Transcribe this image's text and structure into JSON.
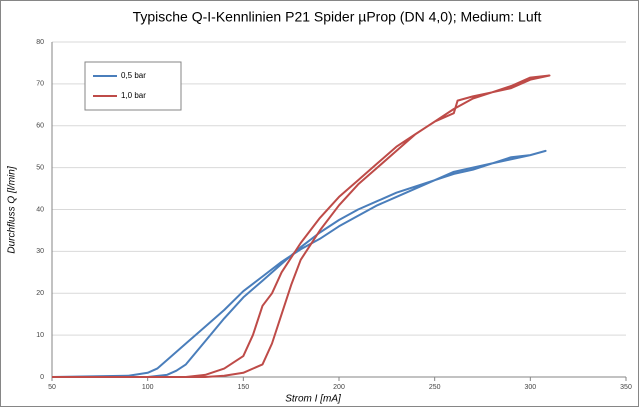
{
  "chart_data": {
    "type": "line",
    "title": "Typische Q-I-Kennlinien P21 Spider µProp (DN 4,0); Medium: Luft",
    "x_label": "Strom I [mA]",
    "y_label": "Durchfluss Q [l/min]",
    "xlim": [
      50,
      350
    ],
    "xticks": [
      50,
      100,
      150,
      200,
      250,
      300,
      350
    ],
    "ylim": [
      0,
      80
    ],
    "yticks": [
      0,
      10,
      20,
      30,
      40,
      50,
      60,
      70,
      80
    ],
    "grid": true,
    "legend": "upper left",
    "series": [
      {
        "name": "0,5 bar",
        "color": "#4a7ebb",
        "x": [
          50,
          90,
          100,
          105,
          110,
          120,
          130,
          140,
          150,
          160,
          170,
          180,
          190,
          200,
          210,
          220,
          230,
          240,
          250,
          260,
          270,
          280,
          290,
          300,
          308,
          300,
          290,
          280,
          270,
          260,
          250,
          240,
          230,
          220,
          210,
          200,
          190,
          180,
          170,
          160,
          150,
          140,
          130,
          120,
          115,
          110,
          100,
          50
        ],
        "values": [
          0,
          0.3,
          1,
          2,
          4,
          8,
          12,
          16,
          20.5,
          24,
          27.5,
          30.5,
          33,
          36,
          38.5,
          41,
          43,
          45,
          47,
          49,
          50,
          51,
          52,
          53,
          54,
          53,
          52.5,
          51,
          49.5,
          48.5,
          47,
          45.5,
          44,
          42,
          40,
          37.5,
          34.5,
          31,
          27,
          23,
          19,
          14,
          8.5,
          3,
          1.5,
          0.5,
          0,
          0
        ]
      },
      {
        "name": "1,0 bar",
        "color": "#be4b48",
        "x": [
          50,
          120,
          130,
          140,
          150,
          155,
          160,
          165,
          170,
          180,
          190,
          200,
          210,
          220,
          230,
          240,
          250,
          260,
          262,
          270,
          280,
          290,
          300,
          310,
          300,
          290,
          280,
          270,
          260,
          250,
          240,
          230,
          220,
          210,
          200,
          190,
          180,
          175,
          170,
          165,
          160,
          150,
          140,
          130,
          50
        ],
        "values": [
          0,
          0,
          0.5,
          2,
          5,
          10,
          17,
          20,
          25,
          32,
          38,
          43,
          47,
          51,
          55,
          58,
          61,
          63,
          66,
          67,
          68,
          69,
          71,
          72,
          71.5,
          69.5,
          68,
          66.5,
          64,
          61,
          58,
          54,
          50,
          46,
          41,
          35,
          28,
          22,
          15,
          8,
          3,
          1,
          0.3,
          0,
          0
        ]
      }
    ]
  }
}
